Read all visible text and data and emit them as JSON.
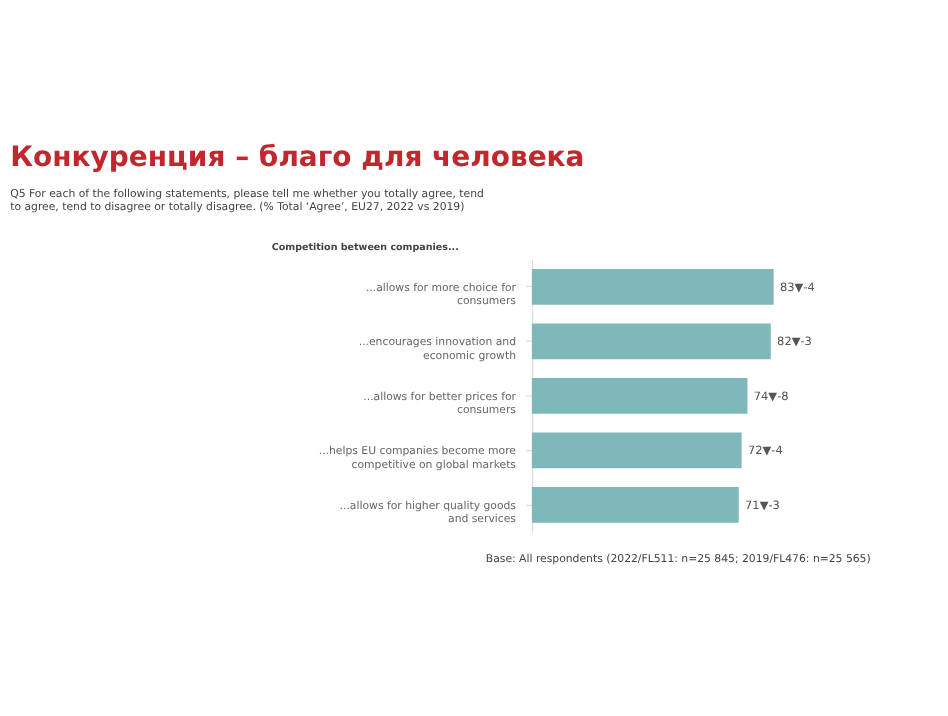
{
  "chart_data": {
    "type": "bar",
    "orientation": "horizontal",
    "title": "Конкуренция – благо для человека",
    "subtitle": "Q5  For each of the following statements, please tell me whether you totally agree, tend to agree, tend to disagree or totally disagree. (% Total ‘Agree’, EU27, 2022 vs 2019)",
    "ylabel": "Competition between companies...",
    "categories": [
      "...allows for more choice for consumers",
      "...encourages innovation and economic growth",
      "...allows for better prices for consumers",
      "...helps EU companies become more competitive on global markets",
      "...allows for higher quality goods and services"
    ],
    "values": [
      83,
      82,
      74,
      72,
      71
    ],
    "value_labels": [
      "83▼-4",
      "82▼-3",
      "74▼-8",
      "72▼-4",
      "71▼-3"
    ],
    "color": "#7fb8ba",
    "tick_labels": "y",
    "annotations": [
      "Base: All respondents (2022/FL511: n=25 845; 2019/FL476: n=25 565)"
    ]
  }
}
